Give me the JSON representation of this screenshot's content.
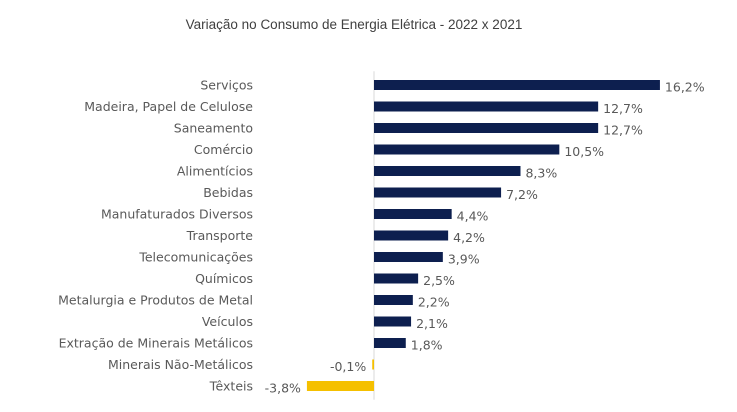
{
  "chart_data": {
    "type": "bar",
    "orientation": "horizontal",
    "title": "Variação no Consumo de Energia Elétrica  - 2022 x 2021",
    "xlabel": "",
    "ylabel": "",
    "categories": [
      "Serviços",
      "Madeira, Papel de Celulose",
      "Saneamento",
      "Comércio",
      "Alimentícios",
      "Bebidas",
      "Manufaturados Diversos",
      "Transporte",
      "Telecomunicações",
      "Químicos",
      "Metalurgia e Produtos de Metal",
      "Veículos",
      "Extração de Minerais Metálicos",
      "Minerais Não-Metálicos",
      "Têxteis"
    ],
    "values": [
      16.2,
      12.7,
      12.7,
      10.5,
      8.3,
      7.2,
      4.4,
      4.2,
      3.9,
      2.5,
      2.2,
      2.1,
      1.8,
      -0.1,
      -3.8
    ],
    "value_labels": [
      "16,2%",
      "12,7%",
      "12,7%",
      "10,5%",
      "8,3%",
      "7,2%",
      "4,4%",
      "4,2%",
      "3,9%",
      "2,5%",
      "2,2%",
      "2,1%",
      "1,8%",
      "-0,1%",
      "-3,8%"
    ],
    "unit": "%",
    "colors": {
      "positive": "#0d1f4f",
      "negative": "#f5c000",
      "axis": "#d9d9d9",
      "text": "#595959"
    },
    "grid": false,
    "legend": "none"
  }
}
